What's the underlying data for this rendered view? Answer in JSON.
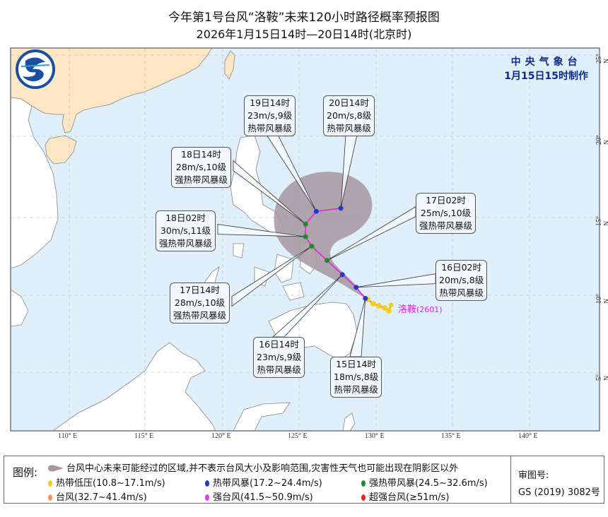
{
  "title": {
    "line1": "今年第1号台风“洛鞍”未来120小时路径概率预报图",
    "line2": "2026年1月15日14时—20日14时(北京时)"
  },
  "issuer": {
    "name": "中央气象台",
    "made": "1月15日15时制作"
  },
  "typhoon": {
    "name": "洛鞍",
    "code": "(2601)"
  },
  "colors": {
    "ocean": "#dff0fa",
    "china": "#fde6c4",
    "other_land": "#ffffff",
    "cone": "#a7969f",
    "track": "#e81ce8",
    "tropical_depression": "#f5d01a",
    "tropical_storm": "#2437c8",
    "severe_tropical_storm": "#1f8a2a",
    "typhoon": "#f6955a",
    "severe_typhoon": "#e83ae8",
    "super_typhoon": "#e8251e",
    "issuer_text": "#0d2a8a"
  },
  "forecast_points": [
    {
      "time": "15日14时",
      "wind": "18m/s,8级",
      "level": "热带风暴级",
      "lon": 129.3,
      "lat": 9.8,
      "cat": "tropical_storm"
    },
    {
      "time": "16日02时",
      "wind": "20m/s,8级",
      "level": "热带风暴级",
      "lon": 128.7,
      "lat": 10.5,
      "cat": "tropical_storm"
    },
    {
      "time": "16日14时",
      "wind": "23m/s,9级",
      "level": "热带风暴级",
      "lon": 127.8,
      "lat": 11.3,
      "cat": "tropical_storm"
    },
    {
      "time": "17日02时",
      "wind": "25m/s,10级",
      "level": "强热带风暴级",
      "lon": 126.8,
      "lat": 12.2,
      "cat": "severe_tropical_storm"
    },
    {
      "time": "17日14时",
      "wind": "28m/s,10级",
      "level": "强热带风暴级",
      "lon": 125.8,
      "lat": 13.1,
      "cat": "severe_tropical_storm"
    },
    {
      "time": "18日02时",
      "wind": "30m/s,11级",
      "level": "强热带风暴级",
      "lon": 125.4,
      "lat": 13.7,
      "cat": "severe_tropical_storm"
    },
    {
      "time": "18日14时",
      "wind": "28m/s,10级",
      "level": "强热带风暴级",
      "lon": 125.4,
      "lat": 14.5,
      "cat": "severe_tropical_storm"
    },
    {
      "time": "19日14时",
      "wind": "23m/s,9级",
      "level": "热带风暴级",
      "lon": 126.1,
      "lat": 15.3,
      "cat": "tropical_storm"
    },
    {
      "time": "20日14时",
      "wind": "20m/s,8级",
      "level": "热带风暴级",
      "lon": 127.7,
      "lat": 15.5,
      "cat": "tropical_storm"
    }
  ],
  "axes": {
    "lon_labels": [
      "110° E",
      "115° E",
      "120° E",
      "125° E",
      "130° E",
      "135° E",
      "140° E"
    ],
    "lat_labels": [
      "25° N",
      "20° N",
      "15° N",
      "10° N",
      "5° N"
    ]
  },
  "legend": {
    "heading": "图例:",
    "cone": "台风中心未来可能经过的区域,并不表示台风大小及影响范围,灾害性天气也可能出现在阴影区以外",
    "items": [
      {
        "label": "热带低压(10.8~17.1m/s)",
        "cat": "tropical_depression"
      },
      {
        "label": "热带风暴(17.2~24.4m/s)",
        "cat": "tropical_storm"
      },
      {
        "label": "强热带风暴(24.5~32.6m/s)",
        "cat": "severe_tropical_storm"
      },
      {
        "label": "台风(32.7~41.4m/s)",
        "cat": "typhoon"
      },
      {
        "label": "强台风(41.5~50.9m/s)",
        "cat": "severe_typhoon"
      },
      {
        "label": "超强台风(≥51m/s)",
        "cat": "super_typhoon"
      }
    ],
    "approval_label": "审图号:",
    "approval_no": "GS (2019) 3082号"
  }
}
